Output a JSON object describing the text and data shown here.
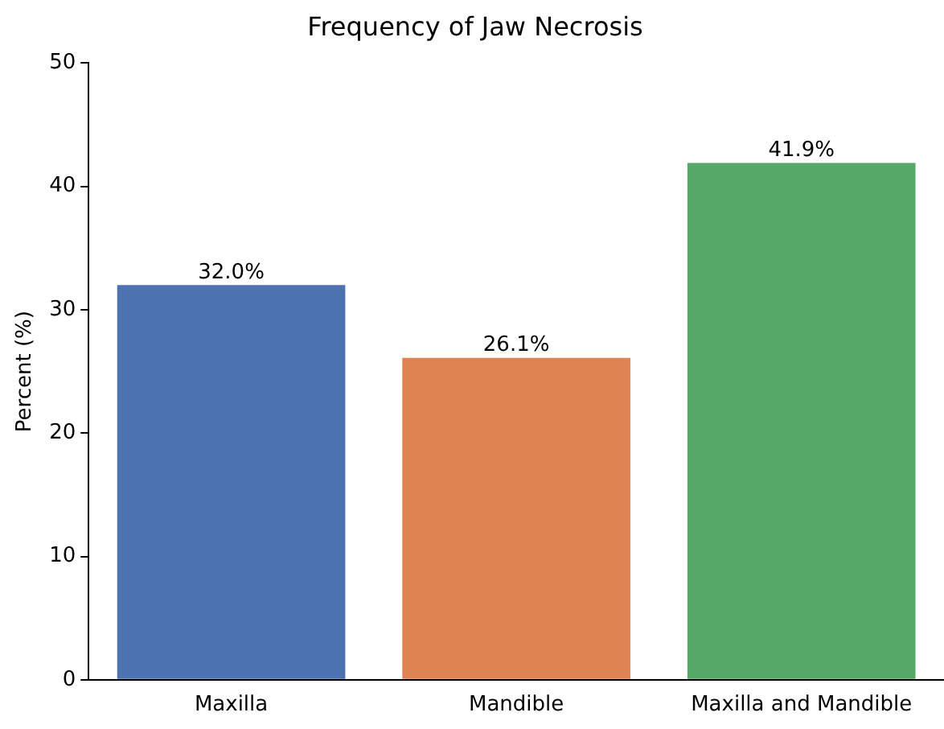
{
  "chart_data": {
    "type": "bar",
    "title": "Frequency of Jaw Necrosis",
    "ylabel": "Percent (%)",
    "categories": [
      "Maxilla",
      "Mandible",
      "Maxilla and Mandible"
    ],
    "values": [
      32.0,
      26.1,
      41.9
    ],
    "value_labels": [
      "32.0%",
      "26.1%",
      "41.9%"
    ],
    "colors": [
      "#4c72b0",
      "#dd8452",
      "#55a868"
    ],
    "ylim": [
      0,
      50
    ],
    "yticks": [
      0,
      10,
      20,
      30,
      40,
      50
    ],
    "grid": false,
    "legend": false
  }
}
